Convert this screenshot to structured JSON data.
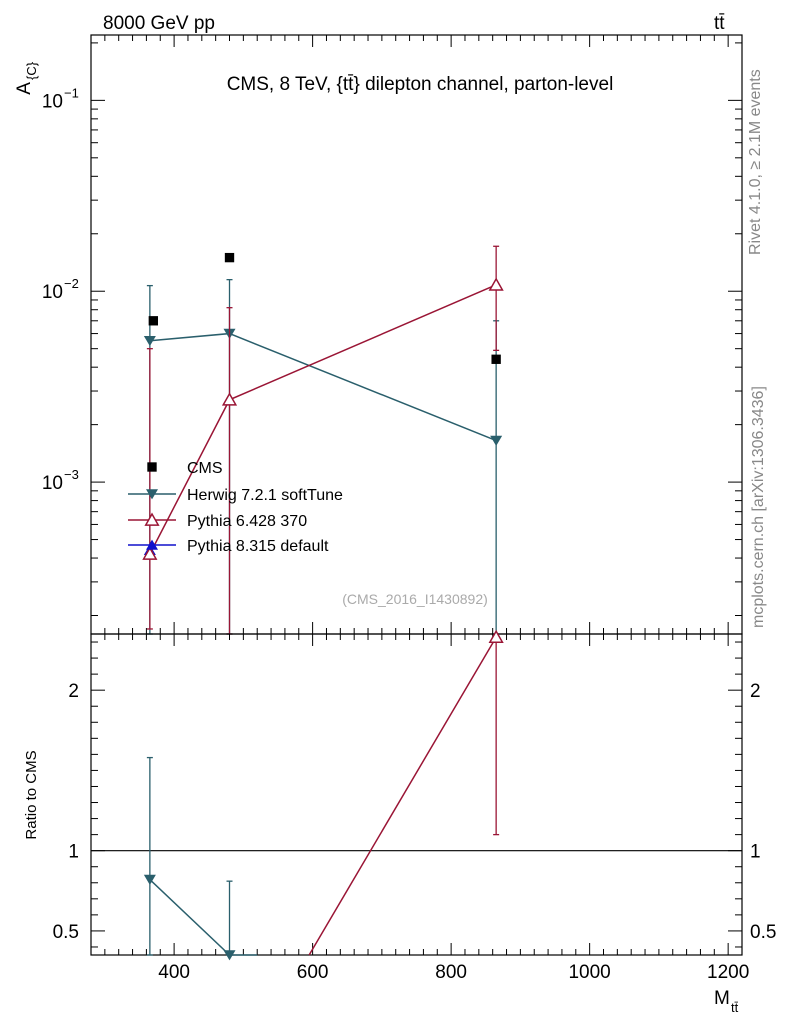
{
  "header": {
    "energy_label": "8000 GeV pp",
    "process_label": "tt̄"
  },
  "side_text": {
    "rivet": "Rivet 4.1.0, ≥ 2.1M events",
    "mcplots": "mcplots.cern.ch [arXiv:1306.3436]"
  },
  "chart_data": [
    {
      "type": "scatter",
      "panel": "main",
      "title": "CMS, 8 TeV, {tt̄} dilepton channel, parton-level",
      "ylabel": "A_{C}",
      "yscale": "log",
      "ylim": [
        0.00016,
        0.22
      ],
      "xlim": [
        280,
        1220
      ],
      "watermark": "(CMS_2016_I1430892)",
      "y_ticks": [
        {
          "value": 0.1,
          "base": "10",
          "exp": "−1"
        },
        {
          "value": 0.01,
          "base": "10",
          "exp": "−2"
        },
        {
          "value": 0.001,
          "base": "10",
          "exp": "−3"
        }
      ],
      "series": [
        {
          "name": "CMS",
          "color": "#000000",
          "marker": "square",
          "points": [
            {
              "x": 370,
              "y": 0.007
            },
            {
              "x": 480,
              "y": 0.015
            },
            {
              "x": 865,
              "y": 0.0044
            }
          ]
        },
        {
          "name": "Herwig 7.2.1 softTune",
          "color": "#2a5f6c",
          "marker": "triangle-down",
          "points": [
            {
              "x": 365,
              "y": 0.0055,
              "lo": 0.00016,
              "hi": 0.0107
            },
            {
              "x": 480,
              "y": 0.006,
              "lo": 0.00016,
              "hi": 0.0115
            },
            {
              "x": 865,
              "y": 0.00165,
              "lo": 0.00016,
              "hi": 0.007
            }
          ]
        },
        {
          "name": "Pythia 6.428 370",
          "color": "#9a1535",
          "marker": "triangle-up-open",
          "points": [
            {
              "x": 365,
              "y": 0.00042,
              "lo": 0.00017,
              "hi": 0.005
            },
            {
              "x": 480,
              "y": 0.0027,
              "lo": 0.00016,
              "hi": 0.0082
            },
            {
              "x": 865,
              "y": 0.0108,
              "lo": 0.0049,
              "hi": 0.0172
            }
          ]
        },
        {
          "name": "Pythia 8.315 default",
          "color": "#1010cc",
          "marker": "triangle-up",
          "points": [
            {
              "x": 365,
              "y": 0.00044
            }
          ]
        }
      ]
    },
    {
      "type": "line",
      "panel": "ratio",
      "ylabel": "Ratio to CMS",
      "xlabel": "M_tt̄",
      "ylim": [
        0.35,
        2.35
      ],
      "xlim": [
        280,
        1220
      ],
      "x_ticks": [
        400,
        600,
        800,
        1000,
        1200
      ],
      "y_ticks": [
        0.5,
        1,
        2
      ],
      "reference": 1,
      "series": [
        {
          "name": "Herwig 7.2.1 softTune",
          "color": "#2a5f6c",
          "points": [
            {
              "x": 365,
              "y": 0.82,
              "lo": 0.35,
              "hi": 1.58
            },
            {
              "x": 480,
              "y": 0.35,
              "lo": 0.35,
              "hi": 0.81
            }
          ],
          "tail": [
            {
              "x": 520,
              "y": 0.35
            }
          ]
        },
        {
          "name": "Pythia 6.428 370",
          "color": "#9a1535",
          "points": [
            {
              "x": 865,
              "y": 2.33,
              "lo": 1.1,
              "hi": 2.33
            }
          ],
          "head": [
            {
              "x": 595,
              "y": 0.35
            }
          ]
        }
      ]
    }
  ]
}
